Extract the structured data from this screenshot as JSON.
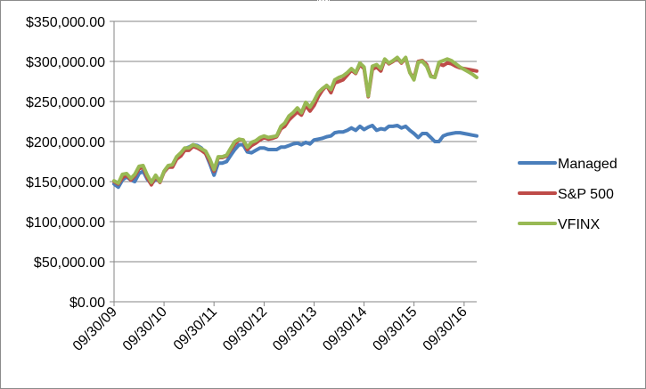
{
  "chart_data": {
    "type": "line",
    "title": "",
    "xlabel": "",
    "ylabel": "",
    "ylim": [
      0,
      350000
    ],
    "yticks": [
      "$350,000.00",
      "$300,000.00",
      "$250,000.00",
      "$200,000.00",
      "$150,000.00",
      "$100,000.00",
      "$50,000.00",
      "$0.00"
    ],
    "xlim": [
      "2009-09-30",
      "2016-12-31"
    ],
    "xticks": [
      "09/30/09",
      "09/30/10",
      "09/30/11",
      "09/30/12",
      "09/30/13",
      "09/30/14",
      "09/30/15",
      "09/30/16"
    ],
    "grid": "horizontal",
    "legend": "right",
    "series": [
      {
        "name": "Managed",
        "color": "#4a7ebb",
        "points": [
          [
            "2009-09-30",
            147000
          ],
          [
            "2009-10-31",
            143000
          ],
          [
            "2009-11-30",
            152000
          ],
          [
            "2009-12-31",
            156000
          ],
          [
            "2010-01-31",
            152000
          ],
          [
            "2010-02-28",
            150000
          ],
          [
            "2010-03-31",
            160000
          ],
          [
            "2010-04-30",
            163000
          ],
          [
            "2010-05-31",
            153000
          ],
          [
            "2010-06-30",
            147000
          ],
          [
            "2010-07-31",
            153000
          ],
          [
            "2010-08-31",
            151000
          ],
          [
            "2010-09-30",
            162000
          ],
          [
            "2010-10-31",
            168000
          ],
          [
            "2010-11-30",
            170000
          ],
          [
            "2010-12-31",
            180000
          ],
          [
            "2011-01-31",
            185000
          ],
          [
            "2011-02-28",
            191000
          ],
          [
            "2011-03-31",
            193000
          ],
          [
            "2011-04-30",
            196000
          ],
          [
            "2011-05-31",
            195000
          ],
          [
            "2011-06-30",
            192000
          ],
          [
            "2011-07-31",
            185000
          ],
          [
            "2011-08-31",
            172000
          ],
          [
            "2011-09-30",
            158000
          ],
          [
            "2011-10-31",
            173000
          ],
          [
            "2011-11-30",
            173000
          ],
          [
            "2011-12-31",
            175000
          ],
          [
            "2012-01-31",
            183000
          ],
          [
            "2012-02-29",
            190000
          ],
          [
            "2012-03-31",
            196000
          ],
          [
            "2012-04-30",
            196000
          ],
          [
            "2012-05-31",
            187000
          ],
          [
            "2012-06-30",
            186000
          ],
          [
            "2012-07-31",
            189000
          ],
          [
            "2012-08-31",
            192000
          ],
          [
            "2012-09-30",
            192000
          ],
          [
            "2012-10-31",
            190000
          ],
          [
            "2012-11-30",
            190000
          ],
          [
            "2012-12-31",
            190000
          ],
          [
            "2013-01-31",
            193000
          ],
          [
            "2013-02-28",
            193000
          ],
          [
            "2013-03-31",
            195000
          ],
          [
            "2013-04-30",
            197000
          ],
          [
            "2013-05-31",
            198000
          ],
          [
            "2013-06-30",
            196000
          ],
          [
            "2013-07-31",
            199000
          ],
          [
            "2013-08-31",
            197000
          ],
          [
            "2013-09-30",
            202000
          ],
          [
            "2013-10-31",
            203000
          ],
          [
            "2013-11-30",
            204000
          ],
          [
            "2013-12-31",
            206000
          ],
          [
            "2014-01-31",
            207000
          ],
          [
            "2014-02-28",
            211000
          ],
          [
            "2014-03-31",
            212000
          ],
          [
            "2014-04-30",
            212000
          ],
          [
            "2014-05-31",
            214000
          ],
          [
            "2014-06-30",
            217000
          ],
          [
            "2014-07-31",
            214000
          ],
          [
            "2014-08-31",
            219000
          ],
          [
            "2014-09-30",
            215000
          ],
          [
            "2014-10-31",
            218000
          ],
          [
            "2014-11-30",
            220000
          ],
          [
            "2014-12-31",
            214000
          ],
          [
            "2015-01-31",
            216000
          ],
          [
            "2015-02-28",
            215000
          ],
          [
            "2015-03-31",
            219000
          ],
          [
            "2015-04-30",
            219000
          ],
          [
            "2015-05-31",
            220000
          ],
          [
            "2015-06-30",
            217000
          ],
          [
            "2015-07-31",
            219000
          ],
          [
            "2015-08-31",
            214000
          ],
          [
            "2015-09-30",
            210000
          ],
          [
            "2015-10-31",
            205000
          ],
          [
            "2015-11-30",
            210000
          ],
          [
            "2015-12-31",
            210000
          ],
          [
            "2016-01-31",
            205000
          ],
          [
            "2016-02-29",
            200000
          ],
          [
            "2016-03-31",
            200000
          ],
          [
            "2016-04-30",
            207000
          ],
          [
            "2016-05-31",
            209000
          ],
          [
            "2016-06-30",
            210000
          ],
          [
            "2016-07-31",
            211000
          ],
          [
            "2016-08-31",
            211000
          ],
          [
            "2016-09-30",
            210000
          ],
          [
            "2016-10-31",
            209000
          ],
          [
            "2016-11-30",
            208000
          ],
          [
            "2016-12-31",
            207000
          ]
        ]
      },
      {
        "name": "S&P 500",
        "color": "#be4b48",
        "points": [
          [
            "2009-09-30",
            150000
          ],
          [
            "2009-10-31",
            147000
          ],
          [
            "2009-11-30",
            155000
          ],
          [
            "2009-12-31",
            158000
          ],
          [
            "2010-01-31",
            152000
          ],
          [
            "2010-02-28",
            157000
          ],
          [
            "2010-03-31",
            166000
          ],
          [
            "2010-04-30",
            168000
          ],
          [
            "2010-05-31",
            155000
          ],
          [
            "2010-06-30",
            146000
          ],
          [
            "2010-07-31",
            156000
          ],
          [
            "2010-08-31",
            149000
          ],
          [
            "2010-09-30",
            162000
          ],
          [
            "2010-10-31",
            168000
          ],
          [
            "2010-11-30",
            168000
          ],
          [
            "2010-12-31",
            178000
          ],
          [
            "2011-01-31",
            182000
          ],
          [
            "2011-02-28",
            189000
          ],
          [
            "2011-03-31",
            189000
          ],
          [
            "2011-04-30",
            194000
          ],
          [
            "2011-05-31",
            192000
          ],
          [
            "2011-06-30",
            189000
          ],
          [
            "2011-07-31",
            185000
          ],
          [
            "2011-08-31",
            175000
          ],
          [
            "2011-09-30",
            163000
          ],
          [
            "2011-10-31",
            180000
          ],
          [
            "2011-11-30",
            180000
          ],
          [
            "2011-12-31",
            182000
          ],
          [
            "2012-01-31",
            190000
          ],
          [
            "2012-02-29",
            197000
          ],
          [
            "2012-03-31",
            202000
          ],
          [
            "2012-04-30",
            202000
          ],
          [
            "2012-05-31",
            190000
          ],
          [
            "2012-06-30",
            195000
          ],
          [
            "2012-07-31",
            198000
          ],
          [
            "2012-08-31",
            202000
          ],
          [
            "2012-09-30",
            205000
          ],
          [
            "2012-10-31",
            203000
          ],
          [
            "2012-11-30",
            204000
          ],
          [
            "2012-12-31",
            206000
          ],
          [
            "2013-01-31",
            216000
          ],
          [
            "2013-02-28",
            219000
          ],
          [
            "2013-03-31",
            227000
          ],
          [
            "2013-04-30",
            232000
          ],
          [
            "2013-05-31",
            237000
          ],
          [
            "2013-06-30",
            233000
          ],
          [
            "2013-07-31",
            245000
          ],
          [
            "2013-08-31",
            238000
          ],
          [
            "2013-09-30",
            245000
          ],
          [
            "2013-10-31",
            256000
          ],
          [
            "2013-11-30",
            264000
          ],
          [
            "2013-12-31",
            270000
          ],
          [
            "2014-01-31",
            261000
          ],
          [
            "2014-02-28",
            273000
          ],
          [
            "2014-03-31",
            275000
          ],
          [
            "2014-04-30",
            277000
          ],
          [
            "2014-05-31",
            283000
          ],
          [
            "2014-06-30",
            289000
          ],
          [
            "2014-07-31",
            285000
          ],
          [
            "2014-08-31",
            296000
          ],
          [
            "2014-09-30",
            291000
          ],
          [
            "2014-10-31",
            256000
          ],
          [
            "2014-11-30",
            290000
          ],
          [
            "2014-12-31",
            293000
          ],
          [
            "2015-01-31",
            288000
          ],
          [
            "2015-02-28",
            302000
          ],
          [
            "2015-03-31",
            297000
          ],
          [
            "2015-04-30",
            300000
          ],
          [
            "2015-05-31",
            304000
          ],
          [
            "2015-06-30",
            298000
          ],
          [
            "2015-07-31",
            304000
          ],
          [
            "2015-08-31",
            286000
          ],
          [
            "2015-09-30",
            279000
          ],
          [
            "2015-10-31",
            300000
          ],
          [
            "2015-11-30",
            301000
          ],
          [
            "2015-12-31",
            296000
          ],
          [
            "2016-01-31",
            282000
          ],
          [
            "2016-02-29",
            280000
          ],
          [
            "2016-03-31",
            297000
          ],
          [
            "2016-04-30",
            295000
          ],
          [
            "2016-05-31",
            298000
          ],
          [
            "2016-06-30",
            297000
          ],
          [
            "2016-07-31",
            294000
          ],
          [
            "2016-08-31",
            292000
          ],
          [
            "2016-09-30",
            291000
          ],
          [
            "2016-10-31",
            290000
          ],
          [
            "2016-11-30",
            289000
          ],
          [
            "2016-12-31",
            288000
          ]
        ]
      },
      {
        "name": "VFINX",
        "color": "#98b954",
        "points": [
          [
            "2009-09-30",
            151000
          ],
          [
            "2009-10-31",
            148000
          ],
          [
            "2009-11-30",
            159000
          ],
          [
            "2009-12-31",
            160000
          ],
          [
            "2010-01-31",
            154000
          ],
          [
            "2010-02-28",
            159000
          ],
          [
            "2010-03-31",
            169000
          ],
          [
            "2010-04-30",
            170000
          ],
          [
            "2010-05-31",
            158000
          ],
          [
            "2010-06-30",
            149000
          ],
          [
            "2010-07-31",
            158000
          ],
          [
            "2010-08-31",
            150000
          ],
          [
            "2010-09-30",
            163000
          ],
          [
            "2010-10-31",
            170000
          ],
          [
            "2010-11-30",
            171000
          ],
          [
            "2010-12-31",
            181000
          ],
          [
            "2011-01-31",
            186000
          ],
          [
            "2011-02-28",
            192000
          ],
          [
            "2011-03-31",
            192000
          ],
          [
            "2011-04-30",
            196000
          ],
          [
            "2011-05-31",
            194000
          ],
          [
            "2011-06-30",
            191000
          ],
          [
            "2011-07-31",
            188000
          ],
          [
            "2011-08-31",
            178000
          ],
          [
            "2011-09-30",
            165000
          ],
          [
            "2011-10-31",
            181000
          ],
          [
            "2011-11-30",
            181000
          ],
          [
            "2011-12-31",
            183000
          ],
          [
            "2012-01-31",
            192000
          ],
          [
            "2012-02-29",
            200000
          ],
          [
            "2012-03-31",
            203000
          ],
          [
            "2012-04-30",
            202000
          ],
          [
            "2012-05-31",
            193000
          ],
          [
            "2012-06-30",
            199000
          ],
          [
            "2012-07-31",
            201000
          ],
          [
            "2012-08-31",
            205000
          ],
          [
            "2012-09-30",
            207000
          ],
          [
            "2012-10-31",
            205000
          ],
          [
            "2012-11-30",
            206000
          ],
          [
            "2012-12-31",
            207000
          ],
          [
            "2013-01-31",
            219000
          ],
          [
            "2013-02-28",
            223000
          ],
          [
            "2013-03-31",
            232000
          ],
          [
            "2013-04-30",
            236000
          ],
          [
            "2013-05-31",
            242000
          ],
          [
            "2013-06-30",
            236000
          ],
          [
            "2013-07-31",
            249000
          ],
          [
            "2013-08-31",
            243000
          ],
          [
            "2013-09-30",
            251000
          ],
          [
            "2013-10-31",
            261000
          ],
          [
            "2013-11-30",
            266000
          ],
          [
            "2013-12-31",
            270000
          ],
          [
            "2014-01-31",
            265000
          ],
          [
            "2014-02-28",
            277000
          ],
          [
            "2014-03-31",
            280000
          ],
          [
            "2014-04-30",
            282000
          ],
          [
            "2014-05-31",
            286000
          ],
          [
            "2014-06-30",
            291000
          ],
          [
            "2014-07-31",
            286000
          ],
          [
            "2014-08-31",
            298000
          ],
          [
            "2014-09-30",
            293000
          ],
          [
            "2014-10-31",
            257000
          ],
          [
            "2014-11-30",
            294000
          ],
          [
            "2014-12-31",
            296000
          ],
          [
            "2015-01-31",
            291000
          ],
          [
            "2015-02-28",
            303000
          ],
          [
            "2015-03-31",
            298000
          ],
          [
            "2015-04-30",
            301000
          ],
          [
            "2015-05-31",
            305000
          ],
          [
            "2015-06-30",
            299000
          ],
          [
            "2015-07-31",
            305000
          ],
          [
            "2015-08-31",
            286000
          ],
          [
            "2015-09-30",
            277000
          ],
          [
            "2015-10-31",
            299000
          ],
          [
            "2015-11-30",
            300000
          ],
          [
            "2015-12-31",
            294000
          ],
          [
            "2016-01-31",
            281000
          ],
          [
            "2016-02-29",
            280000
          ],
          [
            "2016-03-31",
            299000
          ],
          [
            "2016-04-30",
            301000
          ],
          [
            "2016-05-31",
            303000
          ],
          [
            "2016-06-30",
            301000
          ],
          [
            "2016-07-31",
            297000
          ],
          [
            "2016-08-31",
            293000
          ],
          [
            "2016-09-30",
            290000
          ],
          [
            "2016-10-31",
            287000
          ],
          [
            "2016-11-30",
            284000
          ],
          [
            "2016-12-31",
            280000
          ]
        ]
      }
    ]
  }
}
